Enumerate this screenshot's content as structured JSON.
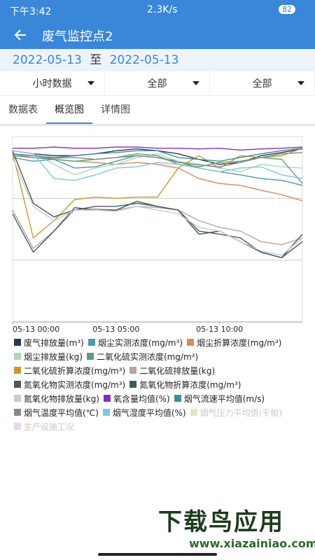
{
  "status_bar": {
    "time": "下午3:42",
    "speed": "2.3K/s",
    "battery": "82"
  },
  "header": {
    "title": "废气监控点2"
  },
  "date_range": {
    "start": "2022-05-13",
    "separator": "至",
    "end": "2022-05-13"
  },
  "filters": [
    "小时数据",
    "全部",
    "全部"
  ],
  "tabs": {
    "items": [
      "数据表",
      "概览图",
      "详情图"
    ],
    "active": 1
  },
  "chart_data": {
    "type": "line",
    "x": [
      0,
      1,
      2,
      3,
      4,
      5,
      6,
      7,
      8,
      9,
      10,
      11,
      12,
      13,
      14
    ],
    "xlim": [
      0,
      14
    ],
    "xticks": [
      {
        "value": 0,
        "label": "05-13 00:00"
      },
      {
        "value": 5,
        "label": "05-13 05:00"
      },
      {
        "value": 10,
        "label": "05-13 10:00"
      }
    ],
    "ylim": [
      0,
      300
    ],
    "ygrid": [
      100,
      200
    ],
    "series": [
      {
        "name": "废气排放量(m³)",
        "color": "#243b55",
        "values": [
          277,
          272,
          269,
          269,
          272,
          277,
          280,
          277,
          272,
          263,
          255,
          258,
          269,
          274,
          280
        ]
      },
      {
        "name": "烟尘实测浓度(mg/m³)",
        "color": "#4a9aa8",
        "values": [
          266,
          260,
          263,
          249,
          251,
          260,
          269,
          266,
          260,
          249,
          243,
          238,
          232,
          229,
          221
        ]
      },
      {
        "name": "烟尘折算浓度(mg/m³)",
        "color": "#d88a5c",
        "values": [
          272,
          266,
          263,
          260,
          258,
          255,
          258,
          255,
          249,
          232,
          224,
          221,
          213,
          206,
          196
        ]
      },
      {
        "name": "烟尘排放量(kg)",
        "color": "#a9d8bb",
        "values": [
          277,
          272,
          255,
          238,
          249,
          255,
          266,
          272,
          260,
          255,
          249,
          243,
          255,
          251,
          249
        ]
      },
      {
        "name": "二氧化硫实测浓度(mg/m³)",
        "color": "#5f9e78",
        "values": [
          269,
          266,
          263,
          260,
          263,
          266,
          272,
          269,
          255,
          251,
          258,
          260,
          266,
          263,
          224
        ]
      },
      {
        "name": "二氧化硫折算浓度(mg/m³)",
        "color": "#c99a30",
        "values": [
          274,
          136,
          164,
          198,
          202,
          200,
          202,
          202,
          249,
          269,
          249,
          269,
          266,
          269,
          281
        ]
      },
      {
        "name": "二氧化硫排放量(kg)",
        "color": "#bba49e",
        "values": [
          181,
          119,
          147,
          181,
          183,
          181,
          187,
          185,
          181,
          164,
          153,
          147,
          130,
          125,
          136
        ]
      },
      {
        "name": "氮氧化物实测浓度(mg/m³)",
        "color": "#555555",
        "values": [
          277,
          192,
          170,
          181,
          187,
          187,
          192,
          187,
          181,
          147,
          142,
          136,
          113,
          104,
          142
        ]
      },
      {
        "name": "氮氧化物折算浓度(mg/m³)",
        "color": "#3b5b5e",
        "values": [
          175,
          113,
          147,
          185,
          181,
          181,
          195,
          187,
          181,
          142,
          147,
          130,
          113,
          104,
          130
        ]
      },
      {
        "name": "氮氧化物排放量(kg)",
        "color": "#c2cdd8",
        "values": [
          266,
          187,
          164,
          181,
          181,
          179,
          187,
          181,
          175,
          153,
          147,
          130,
          115,
          108,
          136
        ]
      },
      {
        "name": "氧含量均值(%)",
        "color": "#7d2fc0",
        "values": [
          281,
          281,
          283,
          281,
          281,
          283,
          283,
          281,
          281,
          280,
          281,
          278,
          280,
          281,
          283
        ]
      },
      {
        "name": "烟气流速平均值(m/s)",
        "color": "#3f8d99",
        "values": [
          272,
          269,
          266,
          269,
          272,
          274,
          277,
          277,
          266,
          263,
          260,
          266,
          272,
          277,
          281
        ]
      },
      {
        "name": "烟气温度平均值(℃)",
        "color": "#888888",
        "values": [
          269,
          266,
          265,
          266,
          263,
          266,
          269,
          266,
          258,
          254,
          251,
          258,
          266,
          272,
          274
        ]
      },
      {
        "name": "烟气湿度平均值(%)",
        "color": "#82c4e2",
        "values": [
          277,
          272,
          232,
          229,
          238,
          249,
          251,
          258,
          255,
          249,
          243,
          249,
          251,
          238,
          232
        ]
      },
      {
        "name": "烟气压力平均值(千帕)",
        "color": "#e6e2cc",
        "visible": false,
        "values": [
          null,
          null,
          null,
          null,
          null,
          null,
          null,
          null,
          null,
          null,
          null,
          null,
          null,
          null,
          null
        ]
      },
      {
        "name": "生产设施工况",
        "color": "#ecd3ea",
        "visible": false,
        "values": [
          null,
          null,
          null,
          null,
          null,
          null,
          null,
          null,
          null,
          null,
          null,
          null,
          null,
          null,
          null
        ]
      }
    ]
  },
  "watermark": {
    "brand": "下载鸟应用",
    "url": "www.xiazainiao.com"
  }
}
